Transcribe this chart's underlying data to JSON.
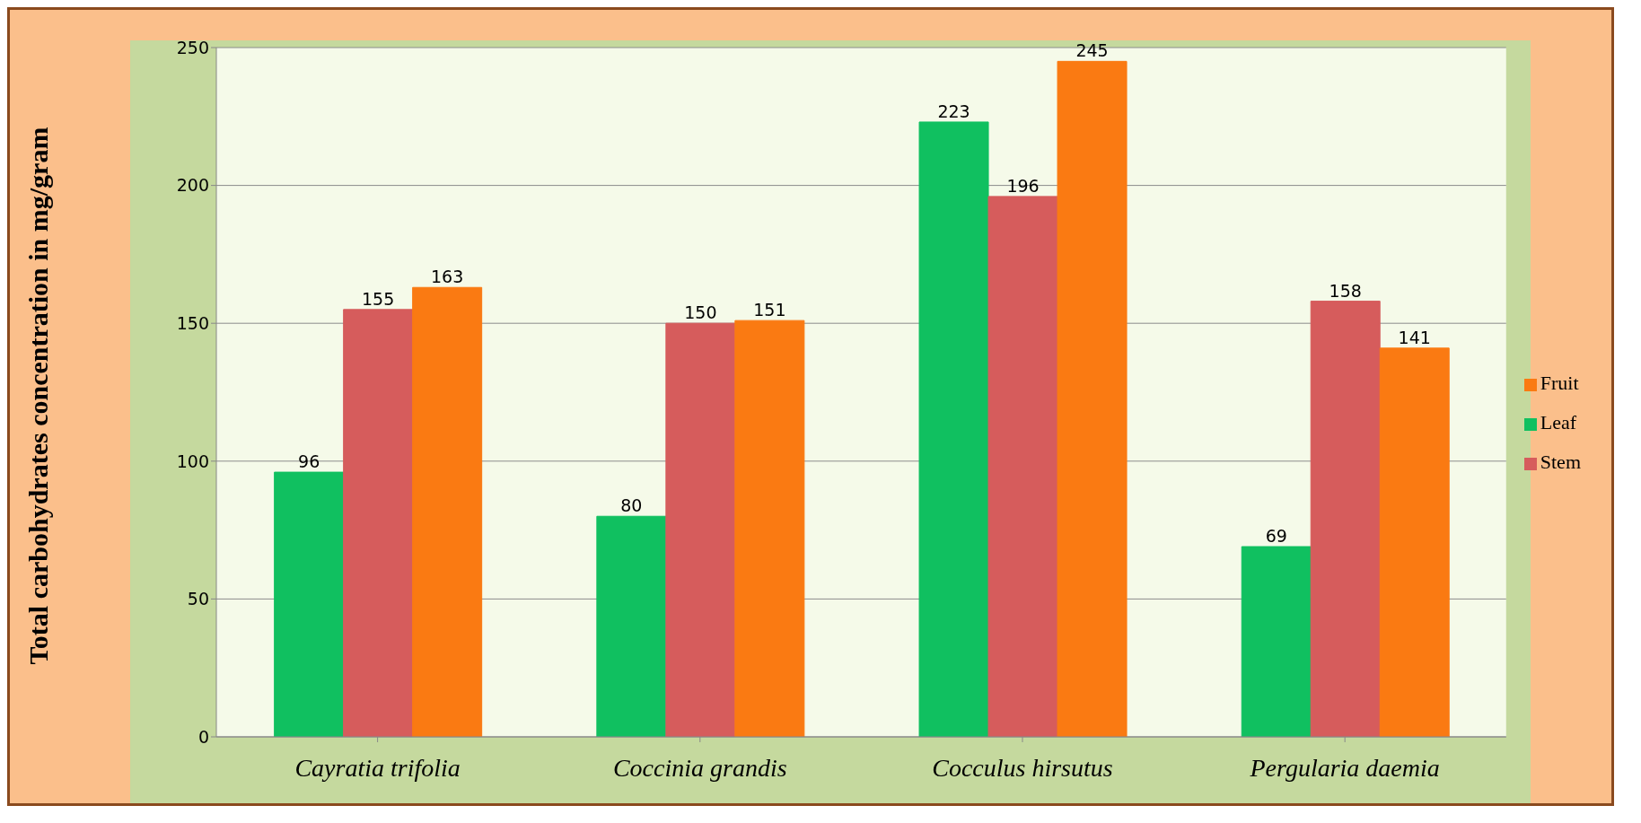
{
  "chart_data": {
    "type": "bar",
    "ylabel": "Total carbohydrates  concentration in mg/gram",
    "categories": [
      "Cayratia  trifolia",
      "Coccinia grandis",
      "Cocculus hirsutus",
      "Pergularia daemia"
    ],
    "series": [
      {
        "name": "Leaf",
        "color": "#10c060",
        "values": [
          96,
          80,
          223,
          69
        ]
      },
      {
        "name": "Stem",
        "color": "#d65c5c",
        "values": [
          155,
          150,
          196,
          158
        ]
      },
      {
        "name": "Fruit",
        "color": "#fa7a12",
        "values": [
          163,
          151,
          245,
          141
        ]
      }
    ],
    "ylim": [
      0,
      250
    ],
    "yticks": [
      0,
      50,
      100,
      150,
      200,
      250
    ],
    "grid": "y",
    "legend": "right",
    "data_labels": true
  }
}
